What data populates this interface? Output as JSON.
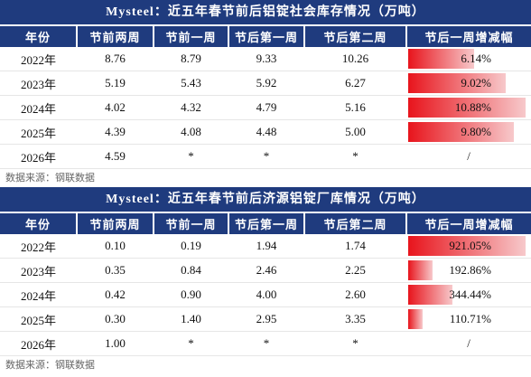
{
  "tables": [
    {
      "title": "Mysteel：近五年春节前后铝锭社会库存情况（万吨）",
      "header": [
        "年份",
        "节前两周",
        "节前一周",
        "节后第一周",
        "节后第二周",
        "节后一周增减幅"
      ],
      "rows": [
        [
          "2022年",
          "8.76",
          "8.79",
          "9.33",
          "10.26",
          "6.14%"
        ],
        [
          "2023年",
          "5.19",
          "5.43",
          "5.92",
          "6.27",
          "9.02%"
        ],
        [
          "2024年",
          "4.02",
          "4.32",
          "4.79",
          "5.16",
          "10.88%"
        ],
        [
          "2025年",
          "4.39",
          "4.08",
          "4.48",
          "5.00",
          "9.80%"
        ],
        [
          "2026年",
          "4.59",
          "*",
          "*",
          "*",
          "/"
        ]
      ],
      "source": "数据来源：钢联数据"
    },
    {
      "title": "Mysteel：近五年春节前后济源铝锭厂库情况（万吨）",
      "header": [
        "年份",
        "节前两周",
        "节前一周",
        "节后第一周",
        "节后第二周",
        "节后一周增减幅"
      ],
      "rows": [
        [
          "2022年",
          "0.10",
          "0.19",
          "1.94",
          "1.74",
          "921.05%"
        ],
        [
          "2023年",
          "0.35",
          "0.84",
          "2.46",
          "2.25",
          "192.86%"
        ],
        [
          "2024年",
          "0.42",
          "0.90",
          "4.00",
          "2.60",
          "344.44%"
        ],
        [
          "2025年",
          "0.30",
          "1.40",
          "2.95",
          "3.35",
          "110.71%"
        ],
        [
          "2026年",
          "1.00",
          "*",
          "*",
          "*",
          "/"
        ]
      ],
      "source": "数据来源：钢联数据"
    }
  ]
}
